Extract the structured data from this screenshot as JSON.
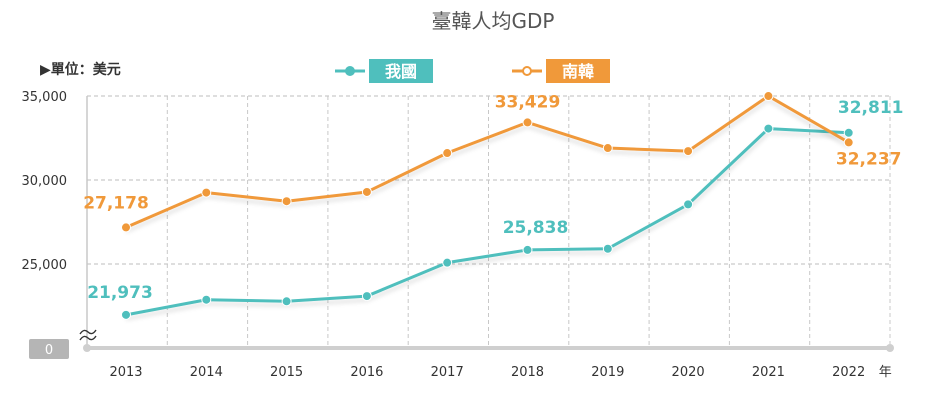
{
  "chart_data": {
    "type": "line",
    "title": "臺韓人均GDP",
    "unit_label": "▶單位：美元",
    "x_unit": "年",
    "x": [
      "2013",
      "2014",
      "2015",
      "2016",
      "2017",
      "2018",
      "2019",
      "2020",
      "2021",
      "2022"
    ],
    "series": [
      {
        "name": "我國",
        "color": "#4fbfbd",
        "values": [
          21973,
          22874,
          22780,
          23091,
          25080,
          25838,
          25908,
          28549,
          33059,
          32811
        ]
      },
      {
        "name": "南韓",
        "color": "#f0993a",
        "values": [
          27178,
          29250,
          28737,
          29288,
          31605,
          33429,
          31902,
          31721,
          34998,
          32237
        ]
      }
    ],
    "data_labels": [
      {
        "series": 0,
        "index": 0,
        "text": "21,973"
      },
      {
        "series": 0,
        "index": 5,
        "text": "25,838"
      },
      {
        "series": 0,
        "index": 9,
        "text": "32,811"
      },
      {
        "series": 1,
        "index": 0,
        "text": "27,178"
      },
      {
        "series": 1,
        "index": 5,
        "text": "33,429"
      },
      {
        "series": 1,
        "index": 9,
        "text": "32,237"
      }
    ],
    "y_ticks": [
      {
        "value": 25000,
        "label": "25,000"
      },
      {
        "value": 30000,
        "label": "30,000"
      },
      {
        "value": 35000,
        "label": "35,000"
      }
    ],
    "y_zero_label": "0",
    "ylim": [
      20000,
      35000
    ],
    "grid": true,
    "legend_position": "top-center"
  }
}
